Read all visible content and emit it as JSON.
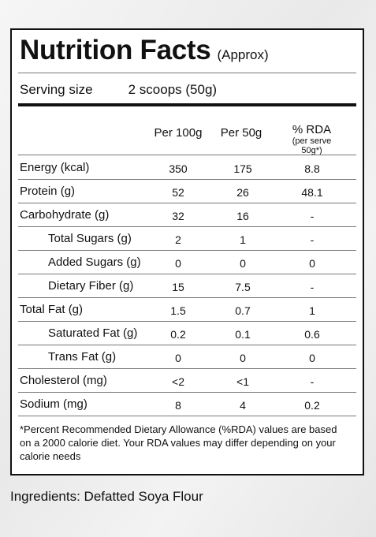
{
  "label": {
    "title": "Nutrition Facts",
    "approx": "(Approx)",
    "serving_label": "Serving size",
    "serving_value": "2 scoops (50g)"
  },
  "table": {
    "headers": {
      "per100": "Per 100g",
      "per50": "Per 50g",
      "rda": "% RDA",
      "rda_sub": "(per serve 50g*)"
    },
    "rows": [
      {
        "name": "Energy (kcal)",
        "per100": "350",
        "per50": "175",
        "rda": "8.8"
      },
      {
        "name": "Protein (g)",
        "per100": "52",
        "per50": "26",
        "rda": "48.1"
      },
      {
        "name": "Carbohydrate (g)",
        "per100": "32",
        "per50": "16",
        "rda": "-"
      },
      {
        "name": "Total Sugars (g)",
        "per100": "2",
        "per50": "1",
        "rda": "-"
      },
      {
        "name": "Added Sugars (g)",
        "per100": "0",
        "per50": "0",
        "rda": "0"
      },
      {
        "name": "Dietary Fiber (g)",
        "per100": "15",
        "per50": "7.5",
        "rda": "-"
      },
      {
        "name": "Total Fat (g)",
        "per100": "1.5",
        "per50": "0.7",
        "rda": "1"
      },
      {
        "name": "Saturated Fat (g)",
        "per100": "0.2",
        "per50": "0.1",
        "rda": "0.6"
      },
      {
        "name": "Trans Fat (g)",
        "per100": "0",
        "per50": "0",
        "rda": "0"
      },
      {
        "name": "Cholesterol (mg)",
        "per100": "<2",
        "per50": "<1",
        "rda": "-"
      },
      {
        "name": "Sodium (mg)",
        "per100": "8",
        "per50": "4",
        "rda": "0.2"
      }
    ]
  },
  "footnote": "*Percent Recommended Dietary Allowance (%RDA) values are based on a 2000 calorie diet. Your RDA values may differ depending on your calorie needs",
  "ingredients": "Ingredients: Defatted Soya Flour"
}
